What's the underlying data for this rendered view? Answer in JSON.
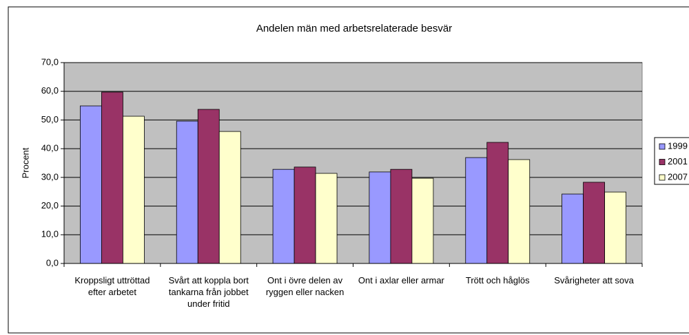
{
  "chart_data": {
    "type": "bar",
    "title": "Andelen män med arbetsrelaterade besvär",
    "ylabel": "Procent",
    "categories": [
      "Kroppsligt uttröttad efter arbetet",
      "Svårt att koppla bort tankarna från jobbet under fritid",
      "Ont i övre delen av ryggen eller nacken",
      "Ont i axlar eller armar",
      "Trött och håglös",
      "Svårigheter att sova"
    ],
    "series": [
      {
        "name": "1999",
        "color": "#9999ff",
        "values": [
          54.9,
          49.6,
          32.8,
          31.9,
          36.9,
          24.2
        ]
      },
      {
        "name": "2001",
        "color": "#993366",
        "values": [
          59.7,
          53.7,
          33.6,
          32.8,
          42.2,
          28.3
        ]
      },
      {
        "name": "2007",
        "color": "#ffffcc",
        "values": [
          51.3,
          46.0,
          31.4,
          29.7,
          36.2,
          24.9
        ]
      }
    ],
    "ylim": [
      0,
      70
    ],
    "yticks": [
      {
        "value": 0,
        "label": "0,0"
      },
      {
        "value": 10,
        "label": "10,0"
      },
      {
        "value": 20,
        "label": "20,0"
      },
      {
        "value": 30,
        "label": "30,0"
      },
      {
        "value": 40,
        "label": "40,0"
      },
      {
        "value": 50,
        "label": "50,0"
      },
      {
        "value": 60,
        "label": "60,0"
      },
      {
        "value": 70,
        "label": "70,0"
      }
    ],
    "grid": true,
    "legend": "right"
  }
}
